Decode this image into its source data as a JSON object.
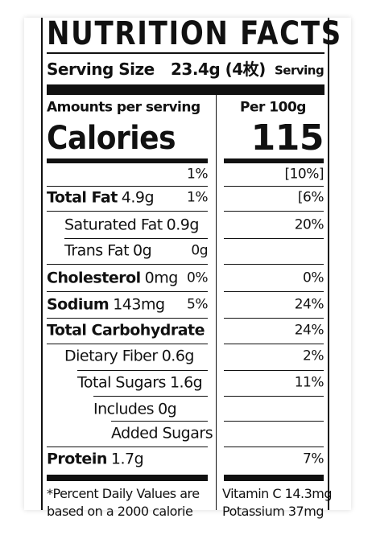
{
  "title": "NUTRITION FACTS",
  "serving": {
    "label": "Serving Size",
    "amount": "23.4g (4枚)",
    "unit": "Serving"
  },
  "header": {
    "left": "Amounts per serving",
    "right": "Per 100g",
    "calories": "Calories",
    "calories_value": "115"
  },
  "rows": [
    {
      "dv": "1%",
      "per100": "[10%]"
    },
    {
      "name": "Total Fat",
      "amount": "4.9g",
      "dv": "1%",
      "per100": "[6%"
    },
    {
      "name": "Saturated Fat",
      "amount": "0.9g",
      "per100": "20%"
    },
    {
      "name": "Trans Fat",
      "amount": "0g",
      "dv": "0g"
    },
    {
      "name": "Cholesterol",
      "amount": "0mg",
      "dv": "0%",
      "per100": "0%"
    },
    {
      "name": "Sodium",
      "amount": "143mg",
      "dv": "5%",
      "per100": "24%"
    },
    {
      "name": "Total Carbohydrate",
      "per100": "24%"
    },
    {
      "name": "Dietary Fiber",
      "amount": "0.6g",
      "per100": "2%"
    },
    {
      "name": "Total Sugars",
      "amount": "1.6g",
      "per100": "11%"
    },
    {
      "name": "Includes",
      "amount": "0g"
    },
    {
      "name": "Added Sugars"
    },
    {
      "name": "Protein",
      "amount": "1.7g",
      "per100": "7%"
    }
  ],
  "footer": {
    "left": [
      "*Percent Daily Values are",
      "based on a 2000 calorie"
    ],
    "right": [
      "Vitamin C 14.3mg",
      "Potassium 37mg"
    ]
  }
}
